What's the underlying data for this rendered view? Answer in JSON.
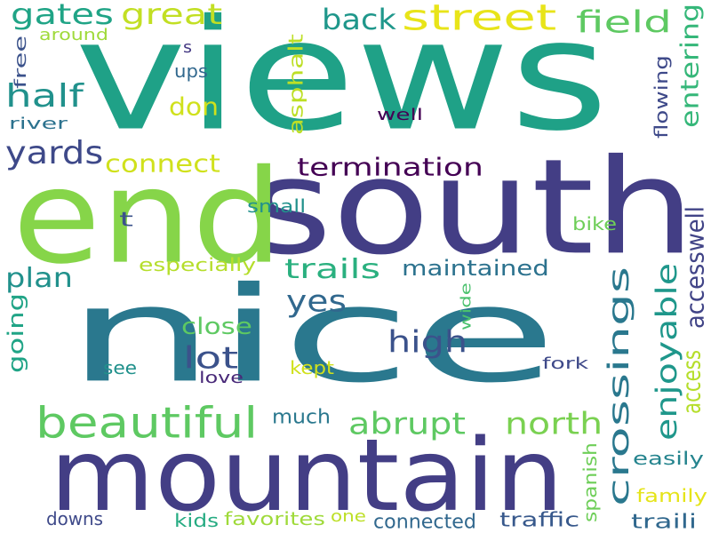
{
  "background": "#ffffff",
  "words": [
    {
      "text": "views",
      "color": "#1fa187"
    },
    {
      "text": "nice",
      "color": "#2a788e"
    },
    {
      "text": "south",
      "color": "#433e85"
    },
    {
      "text": "end",
      "color": "#86d549"
    },
    {
      "text": "mountain",
      "color": "#433e85"
    },
    {
      "text": "street",
      "color": "#e8e419"
    },
    {
      "text": "crossings",
      "color": "#2a788e"
    },
    {
      "text": "beautiful",
      "color": "#5ec962"
    },
    {
      "text": "great",
      "color": "#c2df23"
    },
    {
      "text": "gates",
      "color": "#20a486"
    },
    {
      "text": "half",
      "color": "#21918c"
    },
    {
      "text": "yards",
      "color": "#3e4989"
    },
    {
      "text": "back",
      "color": "#1f978b"
    },
    {
      "text": "field",
      "color": "#5ec962"
    },
    {
      "text": "termination",
      "color": "#440154"
    },
    {
      "text": "connect",
      "color": "#d0e11c"
    },
    {
      "text": "don",
      "color": "#d0e11c"
    },
    {
      "text": "yes",
      "color": "#31688e"
    },
    {
      "text": "high",
      "color": "#3b528b"
    },
    {
      "text": "lot",
      "color": "#3b528b"
    },
    {
      "text": "abrupt",
      "color": "#5ec962"
    },
    {
      "text": "north",
      "color": "#7ad151"
    },
    {
      "text": "trails",
      "color": "#2ab07f"
    },
    {
      "text": "maintained",
      "color": "#2c728e"
    },
    {
      "text": "plan",
      "color": "#21918c"
    },
    {
      "text": "close",
      "color": "#5ec962"
    },
    {
      "text": "going",
      "color": "#20a486"
    },
    {
      "text": "enjoyable",
      "color": "#1f978b"
    },
    {
      "text": "access",
      "color": "#b5de2b"
    },
    {
      "text": "accesswell",
      "color": "#414487"
    },
    {
      "text": "entering",
      "color": "#35b779"
    },
    {
      "text": "wide",
      "color": "#4ac16d"
    },
    {
      "text": "asphalt",
      "color": "#bddf26"
    },
    {
      "text": "flowing",
      "color": "#3e4989"
    },
    {
      "text": "much",
      "color": "#2a788e"
    },
    {
      "text": "small",
      "color": "#21918c"
    },
    {
      "text": "especially",
      "color": "#b5de2b"
    },
    {
      "text": "bike",
      "color": "#6ece58"
    },
    {
      "text": "see",
      "color": "#21918c"
    },
    {
      "text": "kept",
      "color": "#d0e11c"
    },
    {
      "text": "love",
      "color": "#482878"
    },
    {
      "text": "fork",
      "color": "#3e4989"
    },
    {
      "text": "river",
      "color": "#2c728e"
    },
    {
      "text": "free",
      "color": "#3b528b"
    },
    {
      "text": "around",
      "color": "#9fda3a"
    },
    {
      "text": "ups",
      "color": "#31688e"
    },
    {
      "text": "s",
      "color": "#443983"
    },
    {
      "text": "well",
      "color": "#440154"
    },
    {
      "text": "t",
      "color": "#3b528b"
    },
    {
      "text": "easily",
      "color": "#25848e"
    },
    {
      "text": "spanish",
      "color": "#6ece58"
    },
    {
      "text": "family",
      "color": "#e5e419"
    },
    {
      "text": "downs",
      "color": "#3e4989"
    },
    {
      "text": "kids",
      "color": "#25ab82"
    },
    {
      "text": "favorites",
      "color": "#9fda3a"
    },
    {
      "text": "one",
      "color": "#bddf26"
    },
    {
      "text": "connected",
      "color": "#31688e"
    },
    {
      "text": "traffic",
      "color": "#38598c"
    },
    {
      "text": "traili",
      "color": "#31688e"
    }
  ]
}
